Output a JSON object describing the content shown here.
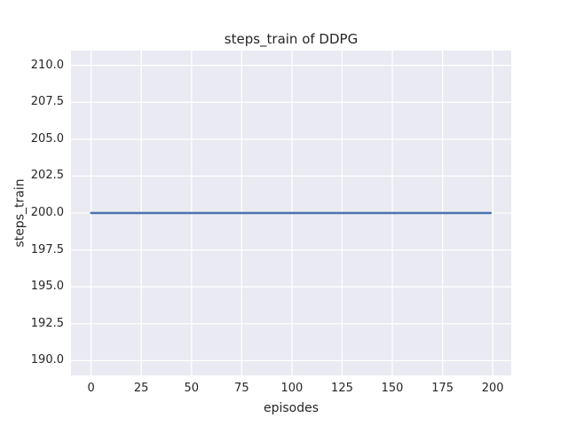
{
  "chart_data": {
    "type": "line",
    "title": "steps_train of DDPG",
    "xlabel": "episodes",
    "ylabel": "steps_train",
    "xlim": [
      -10.0,
      209.2
    ],
    "ylim": [
      189.0,
      211.0
    ],
    "x_ticks": [
      {
        "v": 0,
        "label": "0"
      },
      {
        "v": 25,
        "label": "25"
      },
      {
        "v": 50,
        "label": "50"
      },
      {
        "v": 75,
        "label": "75"
      },
      {
        "v": 100,
        "label": "100"
      },
      {
        "v": 125,
        "label": "125"
      },
      {
        "v": 150,
        "label": "150"
      },
      {
        "v": 175,
        "label": "175"
      },
      {
        "v": 200,
        "label": "200"
      }
    ],
    "y_ticks": [
      {
        "v": 190.0,
        "label": "190.0"
      },
      {
        "v": 192.5,
        "label": "192.5"
      },
      {
        "v": 195.0,
        "label": "195.0"
      },
      {
        "v": 197.5,
        "label": "197.5"
      },
      {
        "v": 200.0,
        "label": "200.0"
      },
      {
        "v": 202.5,
        "label": "202.5"
      },
      {
        "v": 205.0,
        "label": "205.0"
      },
      {
        "v": 207.5,
        "label": "207.5"
      },
      {
        "v": 210.0,
        "label": "210.0"
      }
    ],
    "grid": true,
    "legend": false,
    "plot_background": "#eaeaf2",
    "grid_color": "#ffffff",
    "figure_background": "#ffffff",
    "text_color": "#262626",
    "series": [
      {
        "name": "steps_train",
        "color": "#4c72b0",
        "line_width": 2.4,
        "x": [
          0,
          199
        ],
        "y": [
          200,
          200
        ]
      }
    ]
  }
}
